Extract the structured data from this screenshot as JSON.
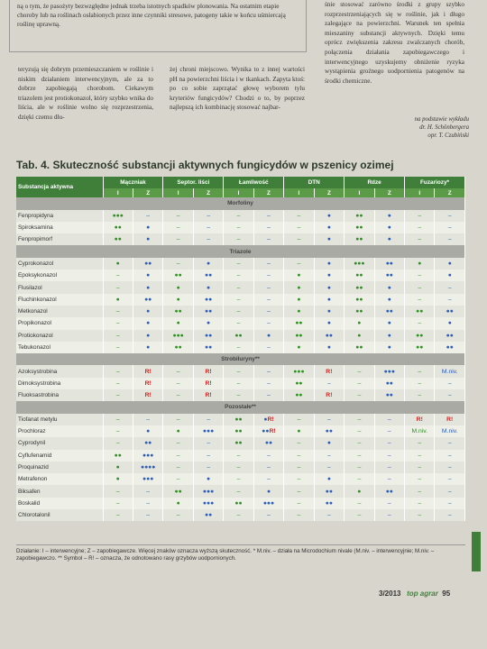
{
  "article": {
    "top": "ną o tym, że pasożyty bezwzględne jednak trzeba istotnych spadków plonowania. Na ostatnim etapie choroby lub na roślinach osłabionych przez inne czynniki stresowe, patogeny takie w końcu uśmiercają roślinę uprawną.",
    "columns": [
      "teryzują się dobrym przemieszczaniem w roślinie i niskim działaniem interwencyjnym, ale za to dobrze zapobiegają chorobom. Ciekawym triazolem jest protiokonazol, który szybko wnika do liścia, ale w roślinie wolno się rozprzestrzenia, dzięki czemu dłu-",
      "żej chroni miejscowo. Wynika to z innej wartości pH na powierzchni liścia i w tkankach. Zapyta ktoś: po co sobie zaprzątać głowę wyborem tylu kryteriów fungicydów? Chodzi o to, by poprzez najlepszą ich kombinację stosować najbar-",
      "śnie stosować zarówno środki z grupy szybko rozprzestrzeniających się w roślinie, jak i długo zalegające na powierzchni. Warunek ten spełnia mieszaniny substancji aktywnych. Dzięki temu oprócz zwiększenia zakresu zwalczanych chorób, połączenia działania zapobiegawczego i interwencyjnego uzyskujemy obniżenie ryzyka wystąpienia groźnego uodpornienia patogenów na środki chemiczne."
    ],
    "source": [
      "na podstawie wykładu",
      "dr. H. Schönbergera",
      "opr. T. Czubiński"
    ]
  },
  "table": {
    "title": "Tab. 4. Skuteczność substancji aktywnych fungicydów w pszenicy ozimej",
    "first_header": "Substancja aktywna",
    "columns": [
      "Mączniak",
      "Septor. liści",
      "Łamliwość",
      "DTN",
      "Rdze",
      "Fuzariozy*"
    ],
    "subcolumns": [
      "I",
      "Z"
    ],
    "groups": [
      {
        "name": "Morfoliny",
        "rows": [
          {
            "name": "Fenpropidyna",
            "cells": [
              "●●●",
              "–",
              "–",
              "–",
              "–",
              "–",
              "–",
              "●",
              "●●",
              "●",
              "–",
              "–"
            ]
          },
          {
            "name": "Spiroksamina",
            "cells": [
              "●●",
              "●",
              "–",
              "–",
              "–",
              "–",
              "–",
              "●",
              "●●",
              "●",
              "–",
              "–"
            ]
          },
          {
            "name": "Fenpropimorf",
            "cells": [
              "●●",
              "●",
              "–",
              "–",
              "–",
              "–",
              "–",
              "●",
              "●●",
              "●",
              "–",
              "–"
            ]
          }
        ]
      },
      {
        "name": "Triazole",
        "rows": [
          {
            "name": "Cyprokonazol",
            "cells": [
              "●",
              "●●",
              "–",
              "●",
              "–",
              "–",
              "–",
              "●",
              "●●●",
              "●●",
              "●",
              "●"
            ]
          },
          {
            "name": "Epoksykonazol",
            "cells": [
              "–",
              "●",
              "●●",
              "●●",
              "–",
              "–",
              "●",
              "●",
              "●●",
              "●●",
              "–",
              "●"
            ]
          },
          {
            "name": "Flusilazol",
            "cells": [
              "–",
              "●",
              "●",
              "●",
              "–",
              "–",
              "●",
              "●",
              "●●",
              "●",
              "–",
              "–"
            ]
          },
          {
            "name": "Fluchinkonazol",
            "cells": [
              "●",
              "●●",
              "●",
              "●●",
              "–",
              "–",
              "●",
              "●",
              "●●",
              "●",
              "–",
              "–"
            ]
          },
          {
            "name": "Metkonazol",
            "cells": [
              "–",
              "●",
              "●●",
              "●●",
              "–",
              "–",
              "●",
              "●",
              "●●",
              "●●",
              "●●",
              "●●"
            ]
          },
          {
            "name": "Propikonazol",
            "cells": [
              "–",
              "●",
              "●",
              "●",
              "–",
              "–",
              "●●",
              "●",
              "●",
              "●",
              "–",
              "●"
            ]
          },
          {
            "name": "Protiokonazol",
            "cells": [
              "–",
              "●",
              "●●●",
              "●●",
              "●●",
              "●",
              "●●",
              "●●",
              "●",
              "●",
              "●●",
              "●●"
            ]
          },
          {
            "name": "Tebukonazol",
            "cells": [
              "–",
              "●",
              "●●",
              "●●",
              "–",
              "–",
              "●",
              "●",
              "●●",
              "●",
              "●●",
              "●●"
            ]
          }
        ]
      },
      {
        "name": "Strobiluryny**",
        "rows": [
          {
            "name": "Azoksystrobina",
            "cells": [
              "–",
              "R!",
              "–",
              "R!",
              "–",
              "–",
              "●●●",
              "R!",
              "–",
              "●●●",
              "–",
              "M.niv."
            ]
          },
          {
            "name": "Dimoksystrobina",
            "cells": [
              "–",
              "R!",
              "–",
              "R!",
              "–",
              "–",
              "●●",
              "–",
              "–",
              "●●",
              "–",
              "–"
            ]
          },
          {
            "name": "Fluoksastrobina",
            "cells": [
              "–",
              "R!",
              "–",
              "R!",
              "–",
              "–",
              "●●",
              "R!",
              "–",
              "●●",
              "–",
              "–"
            ]
          }
        ]
      },
      {
        "name": "Pozostałe**",
        "rows": [
          {
            "name": "Tiofanat metylu",
            "cells": [
              "–",
              "–",
              "–",
              "–",
              "●●",
              "●R!",
              "–",
              "–",
              "–",
              "–",
              "R!",
              "R!"
            ]
          },
          {
            "name": "Prochloraz",
            "cells": [
              "–",
              "●",
              "●",
              "●●●",
              "●●",
              "●●R!",
              "●",
              "●●",
              "–",
              "–",
              "M.niv.",
              "M.niv."
            ]
          },
          {
            "name": "Cyprodynil",
            "cells": [
              "–",
              "●●",
              "–",
              "–",
              "●●",
              "●●",
              "–",
              "●",
              "–",
              "–",
              "–",
              "–"
            ]
          },
          {
            "name": "Cyflufenamid",
            "cells": [
              "●●",
              "●●●",
              "–",
              "–",
              "–",
              "–",
              "–",
              "–",
              "–",
              "–",
              "–",
              "–"
            ]
          },
          {
            "name": "Proquinazid",
            "cells": [
              "●",
              "●●●●",
              "–",
              "–",
              "–",
              "–",
              "–",
              "–",
              "–",
              "–",
              "–",
              "–"
            ]
          },
          {
            "name": "Metrafenon",
            "cells": [
              "●",
              "●●●",
              "–",
              "●",
              "–",
              "–",
              "–",
              "●",
              "–",
              "–",
              "–",
              "–"
            ]
          },
          {
            "name": "Biksafen",
            "cells": [
              "–",
              "–",
              "●●",
              "●●●",
              "–",
              "●",
              "–",
              "●●",
              "●",
              "●●",
              "–",
              "–"
            ]
          },
          {
            "name": "Boskalid",
            "cells": [
              "–",
              "–",
              "●",
              "●●●",
              "●●",
              "●●●",
              "–",
              "●●",
              "–",
              "–",
              "–",
              "–"
            ]
          },
          {
            "name": "Chlorotalonil",
            "cells": [
              "–",
              "–",
              "–",
              "●●",
              "–",
              "–",
              "–",
              "–",
              "–",
              "–",
              "–",
              "–"
            ]
          }
        ]
      }
    ],
    "footnote": "Działanie: I – interwencyjne; Z – zapobiegawcze. Więcej znaków oznacza wyższą skuteczność. * M.niv. – działa na Microdochium nivale (M.niv. – interwencyjnie; M.niv. – zapobiegawczo. ** Symbol – R! – oznacza, że odnotowano rasy grzybów uodpornionych."
  },
  "footer": {
    "issue": "3/2013",
    "brand": "top agrar",
    "page": "95"
  }
}
